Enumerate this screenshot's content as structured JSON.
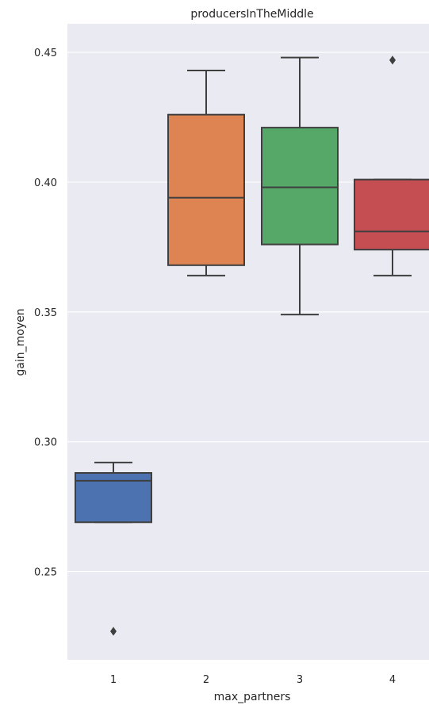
{
  "chart_data": {
    "type": "box",
    "title": "producersInTheMiddle",
    "xlabel": "max_partners",
    "ylabel": "gain_moyen",
    "categories": [
      "1",
      "2",
      "3",
      "4"
    ],
    "ylim": [
      0.216,
      0.461
    ],
    "yticks": [
      0.25,
      0.3,
      0.35,
      0.4,
      0.45
    ],
    "ytick_labels": [
      "0.25",
      "0.30",
      "0.35",
      "0.40",
      "0.45"
    ],
    "grid": true,
    "boxes": [
      {
        "category": "1",
        "whisker_low": 0.269,
        "q1": 0.269,
        "median": 0.285,
        "q3": 0.288,
        "whisker_high": 0.292,
        "outliers": [
          0.227
        ],
        "color": "#4c72b0"
      },
      {
        "category": "2",
        "whisker_low": 0.364,
        "q1": 0.368,
        "median": 0.394,
        "q3": 0.426,
        "whisker_high": 0.443,
        "outliers": [],
        "color": "#dd8452"
      },
      {
        "category": "3",
        "whisker_low": 0.349,
        "q1": 0.376,
        "median": 0.398,
        "q3": 0.421,
        "whisker_high": 0.448,
        "outliers": [],
        "color": "#55a868"
      },
      {
        "category": "4",
        "whisker_low": 0.364,
        "q1": 0.374,
        "median": 0.381,
        "q3": 0.401,
        "whisker_high": 0.401,
        "outliers": [
          0.447
        ],
        "color": "#c44e52"
      }
    ]
  }
}
